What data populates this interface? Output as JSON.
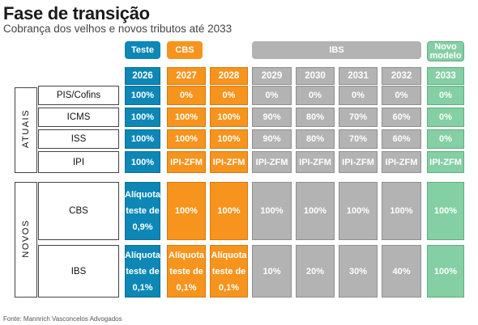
{
  "header": {
    "title": "Fase de transição",
    "subtitle": "Cobrança dos velhos e novos tributos até 2033"
  },
  "phases": {
    "teste": "Teste",
    "cbs": "CBS",
    "ibs": "IBS",
    "novo_modelo": "Novo modelo"
  },
  "years": [
    "2026",
    "2027",
    "2028",
    "2029",
    "2030",
    "2031",
    "2032",
    "2033"
  ],
  "groups": {
    "atuais": "ATUAIS",
    "novos": "NOVOS"
  },
  "rows": [
    {
      "label": "PIS/Cofins",
      "values": [
        "100%",
        "0%",
        "0%",
        "0%",
        "0%",
        "0%",
        "0%",
        "0%"
      ]
    },
    {
      "label": "ICMS",
      "values": [
        "100%",
        "100%",
        "100%",
        "90%",
        "80%",
        "70%",
        "60%",
        "0%"
      ]
    },
    {
      "label": "ISS",
      "values": [
        "100%",
        "100%",
        "100%",
        "90%",
        "80%",
        "70%",
        "60%",
        "0%"
      ]
    },
    {
      "label": "IPI",
      "values": [
        "100%",
        "IPI-ZFM",
        "IPI-ZFM",
        "IPI-ZFM",
        "IPI-ZFM",
        "IPI-ZFM",
        "IPI-ZFM",
        "IPI-ZFM"
      ]
    },
    {
      "label": "CBS",
      "values": [
        "Alíquota teste de 0,9%",
        "100%",
        "100%",
        "100%",
        "100%",
        "100%",
        "100%",
        "100%"
      ]
    },
    {
      "label": "IBS",
      "values": [
        "Alíquota teste de 0,1%",
        "Alíquota teste de 0,1%",
        "Alíquota teste de 0,1%",
        "10%",
        "20%",
        "30%",
        "40%",
        "100%"
      ]
    }
  ],
  "colors": {
    "teste": "#0c87b6",
    "cbs": "#f7941d",
    "ibs": "#b3b3b3",
    "novo_modelo": "#84cfa3"
  },
  "source": "Fonte: Mannrich Vasconcelos Advogados"
}
